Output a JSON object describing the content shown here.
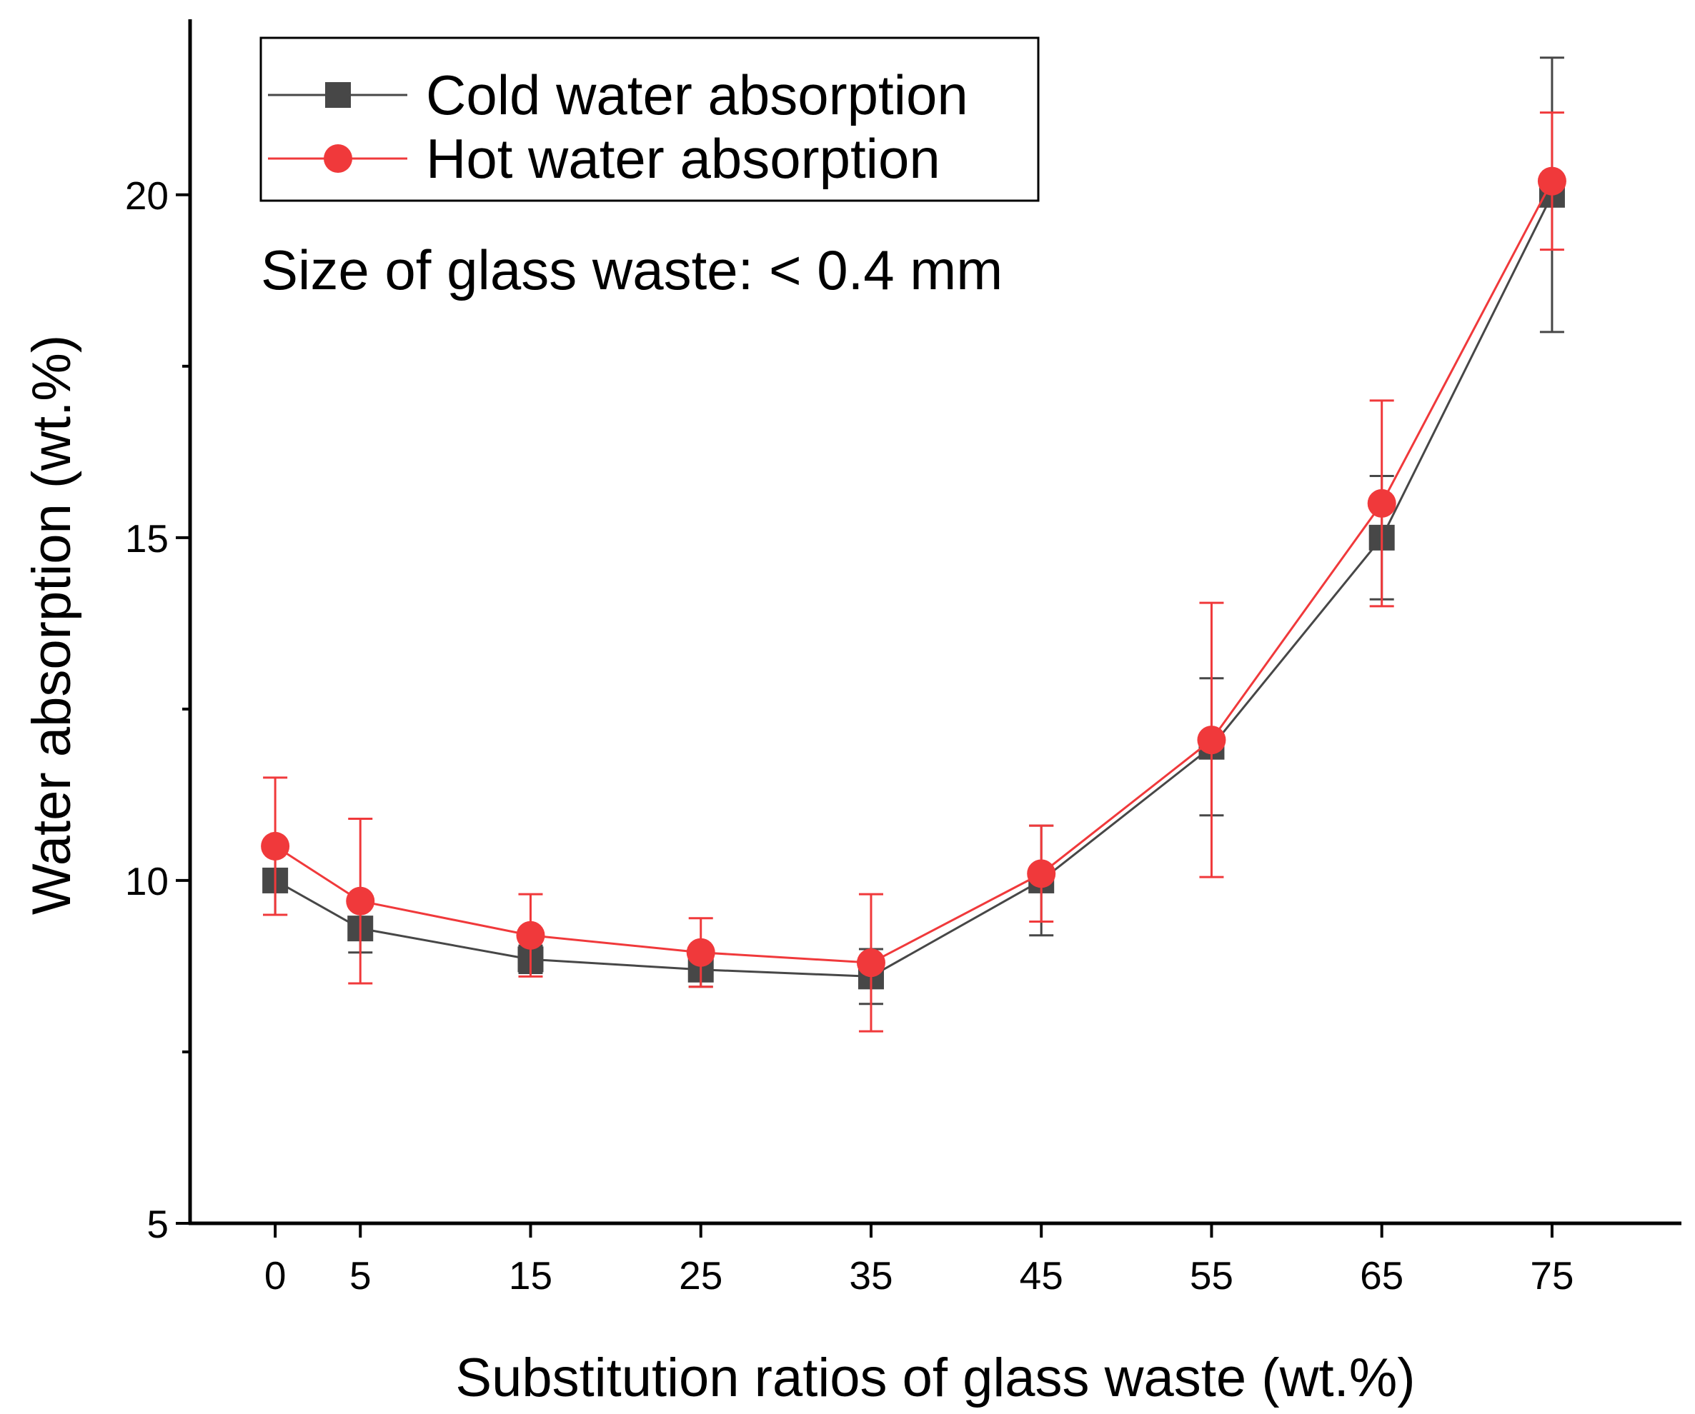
{
  "chart_data": {
    "type": "line",
    "title": "",
    "xlabel": "Substitution ratios of glass waste (wt.%)",
    "ylabel": "Water absorption (wt.%)",
    "annotation": "Size of glass waste: < 0.4 mm",
    "xlim": [
      -5,
      82.6
    ],
    "ylim": [
      5,
      22.56
    ],
    "x": [
      0,
      5,
      15,
      25,
      35,
      45,
      55,
      65,
      75
    ],
    "x_tick_labels": [
      "0",
      "5",
      "15",
      "25",
      "35",
      "45",
      "55",
      "65",
      "75"
    ],
    "y_ticks": [
      5,
      10,
      15,
      20
    ],
    "y_tick_labels": [
      "5",
      "10",
      "15",
      "20"
    ],
    "y_minor_ticks": [
      7.5,
      12.5,
      17.5
    ],
    "grid": false,
    "legend_position": "top-left",
    "series": [
      {
        "name": "Cold water absorption",
        "color": "#474747",
        "marker": "square",
        "values": [
          10.0,
          9.3,
          8.85,
          8.7,
          8.6,
          10.0,
          11.95,
          15.0,
          20.0
        ],
        "errors": [
          0.5,
          0.35,
          0.2,
          0.25,
          0.4,
          0.8,
          1.0,
          0.9,
          2.0
        ]
      },
      {
        "name": "Hot water absorption",
        "color": "#f0393b",
        "marker": "circle",
        "values": [
          10.5,
          9.7,
          9.2,
          8.95,
          8.8,
          10.1,
          12.05,
          15.5,
          20.2
        ],
        "errors": [
          1.0,
          1.2,
          0.6,
          0.5,
          1.0,
          0.7,
          2.0,
          1.5,
          1.0
        ]
      }
    ]
  }
}
